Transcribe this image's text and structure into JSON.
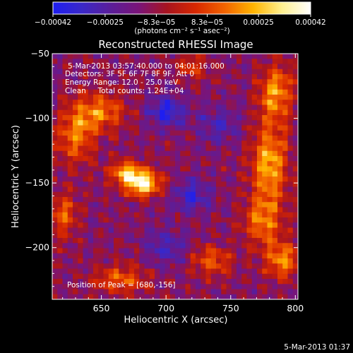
{
  "chart_data": {
    "type": "heatmap",
    "title": "Reconstructed RHESSI Image",
    "xlabel": "Heliocentric X (arcsec)",
    "ylabel": "Heliocentric Y (arcsec)",
    "xlim": [
      612,
      802
    ],
    "ylim": [
      -240,
      -50
    ],
    "x_ticks": [
      650,
      700,
      750,
      800
    ],
    "x_tick_labels": [
      "650",
      "700",
      "750",
      "800"
    ],
    "y_ticks": [
      -50,
      -100,
      -150,
      -200
    ],
    "y_tick_labels": [
      "−50",
      "−100",
      "−150",
      "−200"
    ],
    "colorbar": {
      "min": -0.00042,
      "max": 0.00042,
      "ticks": [
        -0.00042,
        -0.00025,
        -8.3e-05,
        8.3e-05,
        0.00025,
        0.00042
      ],
      "tick_labels": [
        "−0.00042",
        "−0.00025",
        "−8.3e−05",
        "8.3e−05",
        "0.00025",
        "0.00042"
      ],
      "units": "(photons cm⁻² s⁻¹ asec⁻²)",
      "colormap": [
        "#1e1ef0",
        "#3a28c8",
        "#5a1e9a",
        "#7a1478",
        "#a8141e",
        "#d82800",
        "#f26400",
        "#ffb400",
        "#fff090",
        "#ffffff"
      ]
    },
    "annotations": [
      "5-Mar-2013 03:57:40.000 to 04:01:16.000",
      "Detectors: 3F 5F 6F 7F 8F 9F, Att 0",
      "Energy Range: 12.0 - 25.0 keV",
      "Clean     Total counts: 1.24E+04"
    ],
    "peak_text": "Position of Peak = [680,-156]",
    "peak": [
      680,
      -156
    ],
    "sources": [
      {
        "x": 682,
        "y": -150,
        "amp": 1.0,
        "sx": 9,
        "sy": 7
      },
      {
        "x": 668,
        "y": -142,
        "amp": 0.65,
        "sx": 8,
        "sy": 6
      },
      {
        "x": 648,
        "y": -95,
        "amp": 0.55,
        "sx": 14,
        "sy": 10
      },
      {
        "x": 630,
        "y": -115,
        "amp": 0.5,
        "sx": 10,
        "sy": 14
      },
      {
        "x": 785,
        "y": -80,
        "amp": 0.6,
        "sx": 9,
        "sy": 14
      },
      {
        "x": 780,
        "y": -135,
        "amp": 0.65,
        "sx": 10,
        "sy": 22
      },
      {
        "x": 775,
        "y": -180,
        "amp": 0.5,
        "sx": 10,
        "sy": 14
      },
      {
        "x": 790,
        "y": -210,
        "amp": 0.55,
        "sx": 9,
        "sy": 10
      },
      {
        "x": 735,
        "y": -210,
        "amp": 0.45,
        "sx": 11,
        "sy": 8
      },
      {
        "x": 665,
        "y": -225,
        "amp": 0.45,
        "sx": 14,
        "sy": 8
      },
      {
        "x": 620,
        "y": -175,
        "amp": 0.45,
        "sx": 8,
        "sy": 12
      },
      {
        "x": 720,
        "y": -60,
        "amp": 0.35,
        "sx": 8,
        "sy": 7
      },
      {
        "x": 700,
        "y": -95,
        "amp": -0.5,
        "sx": 10,
        "sy": 8
      },
      {
        "x": 720,
        "y": -160,
        "amp": -0.4,
        "sx": 10,
        "sy": 9
      },
      {
        "x": 740,
        "y": -105,
        "amp": -0.3,
        "sx": 12,
        "sy": 10
      },
      {
        "x": 700,
        "y": -200,
        "amp": -0.3,
        "sx": 12,
        "sy": 10
      }
    ]
  },
  "footer": {
    "timestamp": "5-Mar-2013 01:37"
  }
}
